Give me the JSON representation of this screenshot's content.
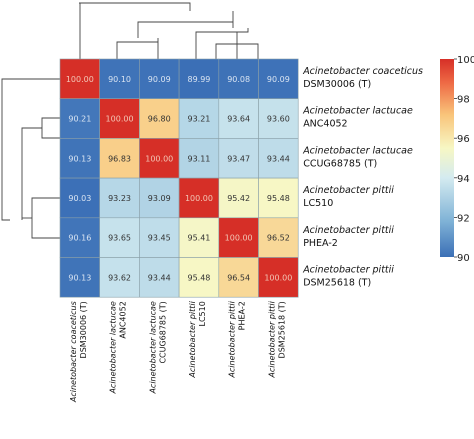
{
  "chart_data": {
    "type": "heatmap",
    "title": "",
    "rows": [
      {
        "species": "Acinetobacter coaceticus",
        "strain": "DSM30006 (T)"
      },
      {
        "species": "Acinetobacter lactucae",
        "strain": "ANC4052"
      },
      {
        "species": "Acinetobacter lactucae",
        "strain": "CCUG68785 (T)"
      },
      {
        "species": "Acinetobacter pittii",
        "strain": "LC510"
      },
      {
        "species": "Acinetobacter pittii",
        "strain": "PHEA-2"
      },
      {
        "species": "Acinetobacter pittii",
        "strain": "DSM25618 (T)"
      }
    ],
    "columns": [
      {
        "species": "Acinetobacter coaceticus",
        "strain": "DSM30006 (T)"
      },
      {
        "species": "Acinetobacter lactucae",
        "strain": "ANC4052"
      },
      {
        "species": "Acinetobacter lactucae",
        "strain": "CCUG68785 (T)"
      },
      {
        "species": "Acinetobacter pittii",
        "strain": "LC510"
      },
      {
        "species": "Acinetobacter pittii",
        "strain": "PHEA-2"
      },
      {
        "species": "Acinetobacter pittii",
        "strain": "DSM25618 (T)"
      }
    ],
    "values": [
      [
        100.0,
        90.1,
        90.09,
        89.99,
        90.08,
        90.09
      ],
      [
        90.21,
        100.0,
        96.8,
        93.21,
        93.64,
        93.6
      ],
      [
        90.13,
        96.83,
        100.0,
        93.11,
        93.47,
        93.44
      ],
      [
        90.03,
        93.23,
        93.09,
        100.0,
        95.42,
        95.48
      ],
      [
        90.16,
        93.65,
        93.45,
        95.41,
        100.0,
        96.52
      ],
      [
        90.13,
        93.62,
        93.44,
        95.48,
        96.54,
        100.0
      ]
    ],
    "value_format": "2 decimals",
    "colorbar": {
      "min": 90,
      "max": 100,
      "ticks": [
        "100",
        "98",
        "96",
        "94",
        "92",
        "90"
      ],
      "colormap": [
        "#3b6fb6",
        "#7fb2d6",
        "#d4ebf0",
        "#f7f7c4",
        "#f9c47a",
        "#ee6a45",
        "#d62f27"
      ]
    },
    "dendrogram": {
      "rows": true,
      "columns": true,
      "side_rows": "left",
      "side_columns": "top"
    }
  }
}
